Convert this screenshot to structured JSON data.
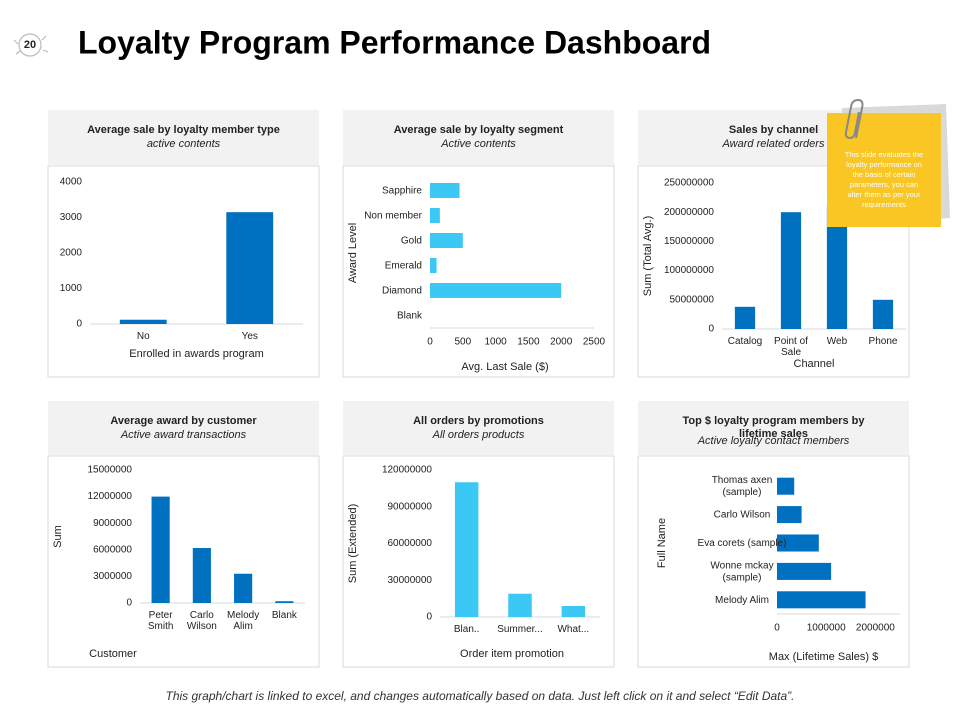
{
  "slide_number": "20",
  "title": "Loyalty Program Performance Dashboard",
  "note": "This slide evaluates the loyalty performance on the basis of certain parameters, you can alter them as per your requirements",
  "footer": "This graph/chart is linked to excel, and changes automatically based on data. Just left click on it and select “Edit Data”.",
  "chart_data": [
    {
      "type": "bar",
      "title": "Average sale by loyalty member type",
      "subtitle": "active contents",
      "categories": [
        "No",
        "Yes"
      ],
      "values": [
        120,
        3150
      ],
      "color": "#0070c0",
      "xlabel": "Enrolled in awards program",
      "ylim": [
        0,
        4000
      ],
      "yticks": [
        0,
        1000,
        2000,
        3000,
        4000
      ]
    },
    {
      "type": "hbar",
      "title": "Average sale by loyalty segment",
      "subtitle": "Active contents",
      "categories": [
        "Sapphire",
        "Non member",
        "Gold",
        "Emerald",
        "Diamond",
        "Blank"
      ],
      "values": [
        450,
        150,
        500,
        100,
        2000,
        0
      ],
      "color": "#3cc8f5",
      "xlabel": "Avg. Last Sale ($)",
      "ylabel": "Award Level",
      "xlim": [
        0,
        2500
      ],
      "xticks": [
        0,
        500,
        1000,
        1500,
        2000,
        2500
      ]
    },
    {
      "type": "bar",
      "title": "Sales by channel",
      "subtitle": "Award related orders",
      "categories": [
        "Catalog",
        "Point of Sale",
        "Web",
        "Phone"
      ],
      "values": [
        38000000,
        200000000,
        210000000,
        50000000
      ],
      "color": "#0070c0",
      "xlabel": "Channel",
      "ylabel": "Sum (Total Avg.)",
      "ylim": [
        0,
        250000000
      ],
      "yticks": [
        0,
        50000000,
        100000000,
        150000000,
        200000000,
        250000000
      ]
    },
    {
      "type": "bar",
      "title": "Average award by customer",
      "subtitle": "Active award transactions",
      "categories": [
        "Peter Smith",
        "Carlo Wilson",
        "Melody Alim",
        "Blank"
      ],
      "values": [
        12000000,
        6200000,
        3300000,
        200000
      ],
      "color": "#0070c0",
      "xlabel": "Customer",
      "ylabel": "Sum",
      "ylim": [
        0,
        15000000
      ],
      "yticks": [
        0,
        3000000,
        6000000,
        9000000,
        12000000,
        15000000
      ]
    },
    {
      "type": "bar",
      "title": "All orders by promotions",
      "subtitle": "All orders products",
      "categories": [
        "Blan..",
        "Summer...",
        "What..."
      ],
      "values": [
        110000000,
        19000000,
        9000000
      ],
      "color": "#3cc8f5",
      "xlabel": "Order item promotion",
      "ylabel": "Sum (Extended)",
      "ylim": [
        0,
        120000000
      ],
      "yticks": [
        0,
        30000000,
        60000000,
        90000000,
        120000000
      ]
    },
    {
      "type": "hbar",
      "title": "Top $ loyalty program members by lifetime sales",
      "subtitle": "Active loyalty contact members",
      "categories": [
        "Thomas axen (sample)",
        "Carlo Wilson",
        "Eva corets (sample)",
        "Wonne mckay (sample)",
        "Melody Alim"
      ],
      "values": [
        350000,
        500000,
        850000,
        1100000,
        1800000
      ],
      "color": "#0070c0",
      "xlabel": "Max (Lifetime Sales) $",
      "ylabel": "Full Name",
      "xlim": [
        0,
        2500000
      ],
      "xticks": [
        0,
        1000000,
        2000000
      ]
    }
  ]
}
